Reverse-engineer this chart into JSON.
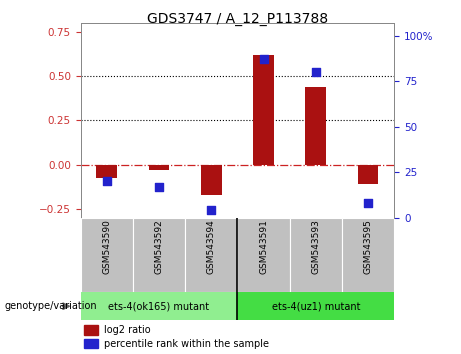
{
  "title": "GDS3747 / A_12_P113788",
  "categories": [
    "GSM543590",
    "GSM543592",
    "GSM543594",
    "GSM543591",
    "GSM543593",
    "GSM543595"
  ],
  "log2_ratio": [
    -0.075,
    -0.03,
    -0.17,
    0.62,
    0.44,
    -0.11
  ],
  "percentile_rank": [
    20,
    17,
    4,
    87,
    80,
    8
  ],
  "ylim_left": [
    -0.3,
    0.8
  ],
  "ylim_right": [
    0,
    107
  ],
  "yticks_left": [
    -0.25,
    0.0,
    0.25,
    0.5,
    0.75
  ],
  "yticks_right": [
    0,
    25,
    50,
    75,
    100
  ],
  "hlines": [
    0.25,
    0.5
  ],
  "bar_color": "#AA1111",
  "dot_color": "#2222CC",
  "group1_label": "ets-4(ok165) mutant",
  "group2_label": "ets-4(uz1) mutant",
  "group1_color": "#90EE90",
  "group2_color": "#44DD44",
  "xlabel_row_color": "#C0C0C0",
  "legend_log2": "log2 ratio",
  "legend_pct": "percentile rank within the sample",
  "zero_line_color": "#CC2222",
  "background_color": "#FFFFFF",
  "plot_bg_color": "#FFFFFF",
  "left_tick_color": "#CC3333",
  "right_tick_color": "#2222CC"
}
